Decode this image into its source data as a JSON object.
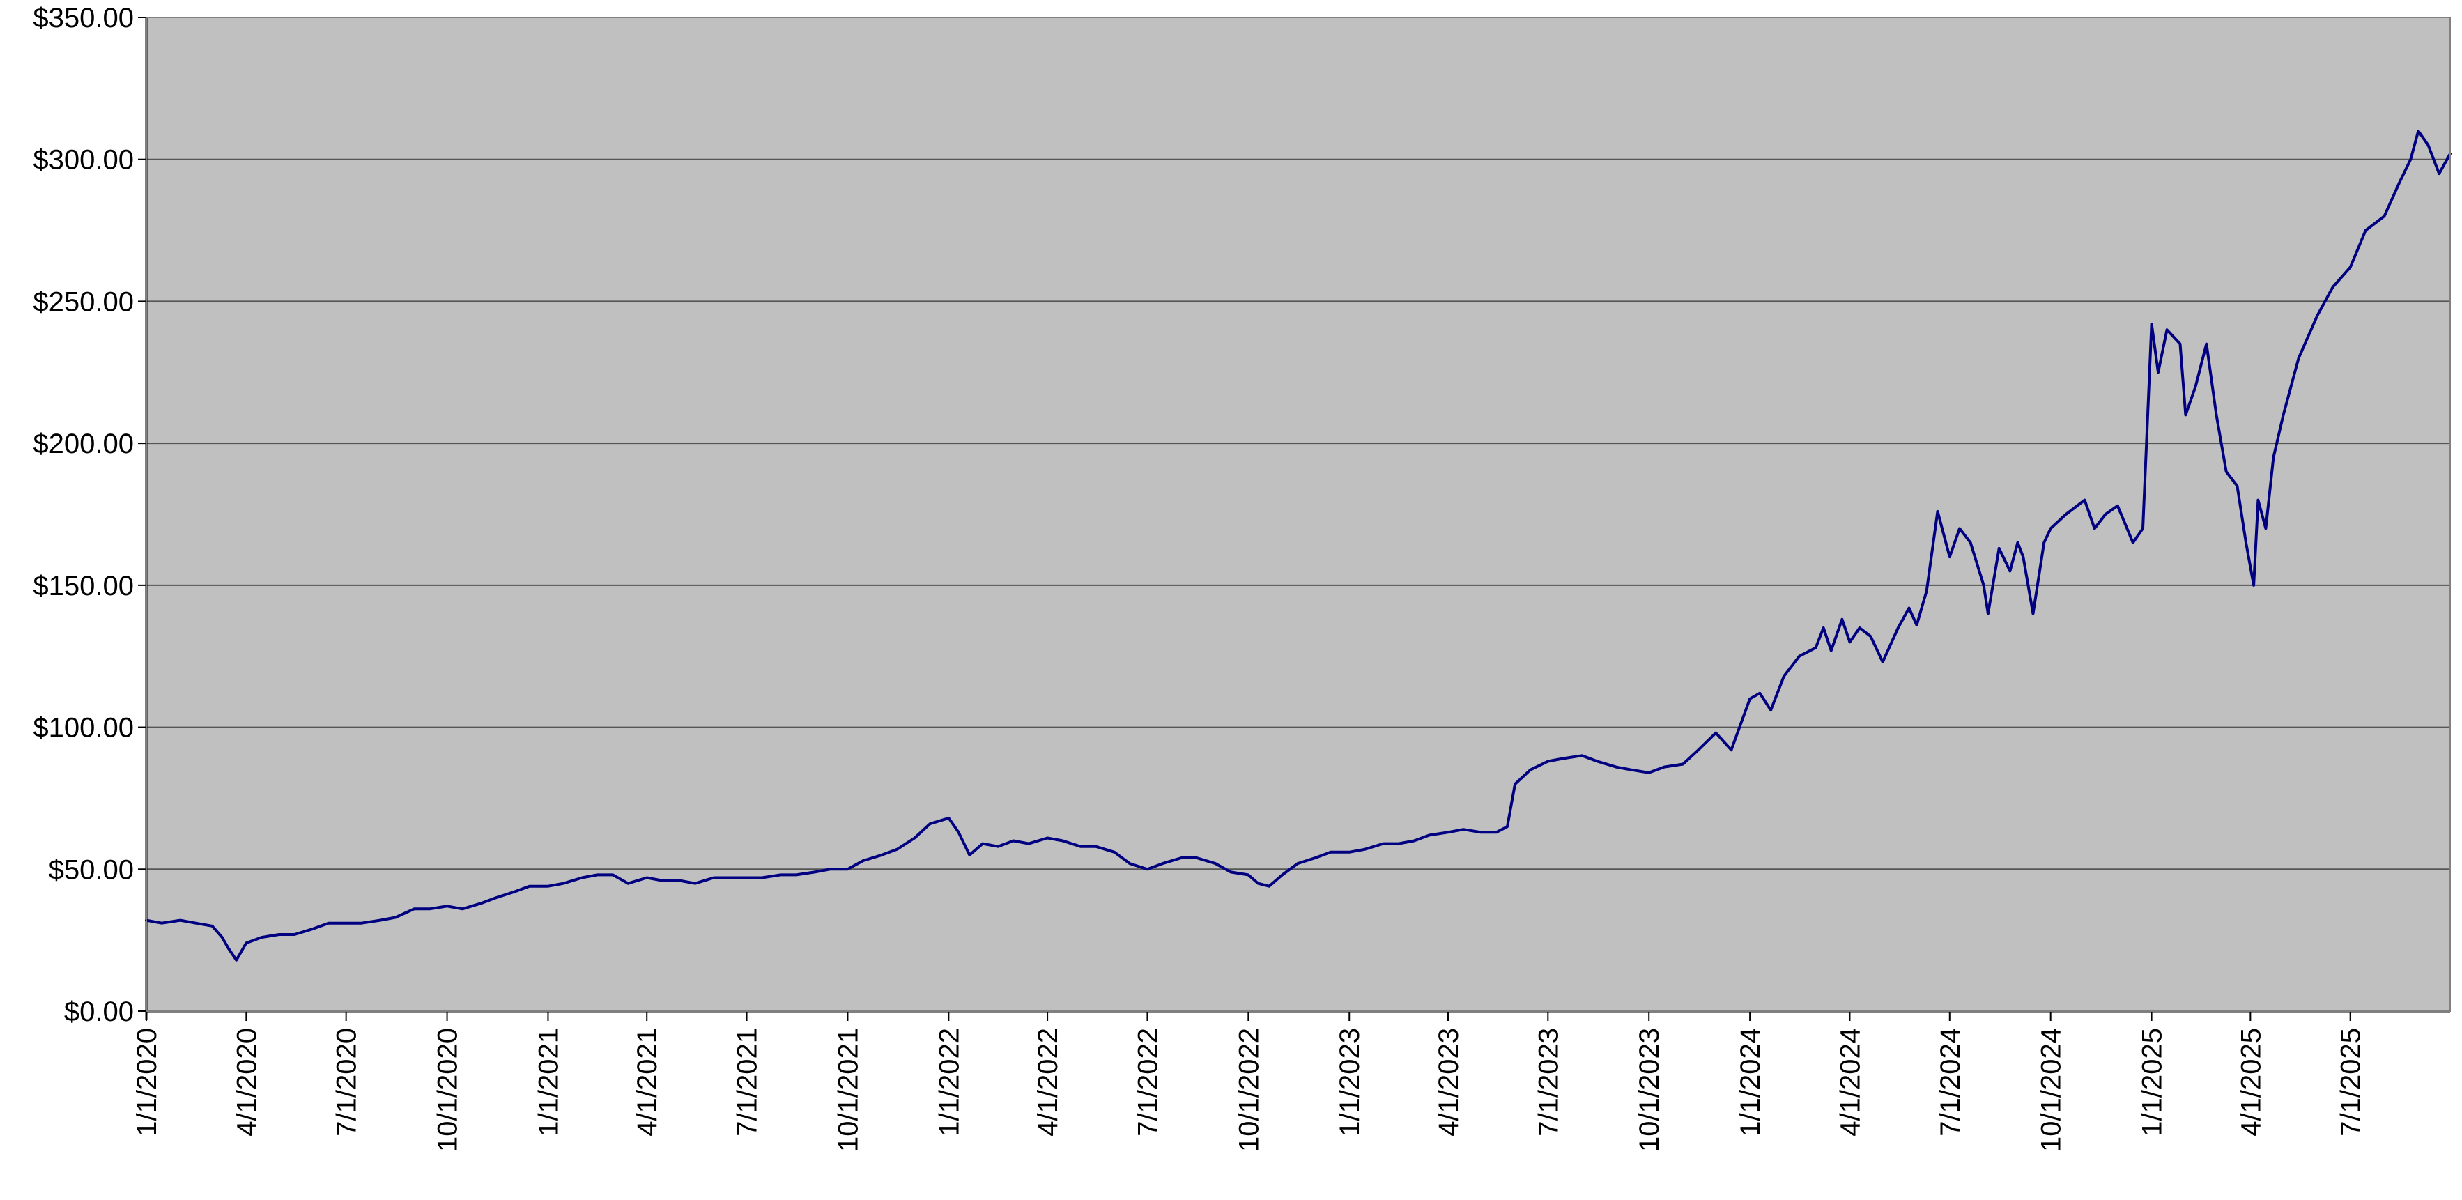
{
  "chart_data": {
    "type": "line",
    "title": "",
    "xlabel": "",
    "ylabel": "",
    "grid": true,
    "legend": "none",
    "colors": {
      "line": "#000080",
      "plot_background": "#c0c0c0",
      "grid": "#555555",
      "axis": "#000000"
    },
    "ylim": [
      0,
      350
    ],
    "y_ticks": [
      {
        "value": 0,
        "label": "$0.00"
      },
      {
        "value": 50,
        "label": "$50.00"
      },
      {
        "value": 100,
        "label": "$100.00"
      },
      {
        "value": 150,
        "label": "$150.00"
      },
      {
        "value": 200,
        "label": "$200.00"
      },
      {
        "value": 250,
        "label": "$250.00"
      },
      {
        "value": 300,
        "label": "$300.00"
      },
      {
        "value": 350,
        "label": "$350.00"
      }
    ],
    "xlim": [
      "2020-01-01",
      "2025-09-30"
    ],
    "x_ticks": [
      {
        "date": "2020-01-01",
        "label": "1/1/2020"
      },
      {
        "date": "2020-04-01",
        "label": "4/1/2020"
      },
      {
        "date": "2020-07-01",
        "label": "7/1/2020"
      },
      {
        "date": "2020-10-01",
        "label": "10/1/2020"
      },
      {
        "date": "2021-01-01",
        "label": "1/1/2021"
      },
      {
        "date": "2021-04-01",
        "label": "4/1/2021"
      },
      {
        "date": "2021-07-01",
        "label": "7/1/2021"
      },
      {
        "date": "2021-10-01",
        "label": "10/1/2021"
      },
      {
        "date": "2022-01-01",
        "label": "1/1/2022"
      },
      {
        "date": "2022-04-01",
        "label": "4/1/2022"
      },
      {
        "date": "2022-07-01",
        "label": "7/1/2022"
      },
      {
        "date": "2022-10-01",
        "label": "10/1/2022"
      },
      {
        "date": "2023-01-01",
        "label": "1/1/2023"
      },
      {
        "date": "2023-04-01",
        "label": "4/1/2023"
      },
      {
        "date": "2023-07-01",
        "label": "7/1/2023"
      },
      {
        "date": "2023-10-01",
        "label": "10/1/2023"
      },
      {
        "date": "2024-01-01",
        "label": "1/1/2024"
      },
      {
        "date": "2024-04-01",
        "label": "4/1/2024"
      },
      {
        "date": "2024-07-01",
        "label": "7/1/2024"
      },
      {
        "date": "2024-10-01",
        "label": "10/1/2024"
      },
      {
        "date": "2025-01-01",
        "label": "1/1/2025"
      },
      {
        "date": "2025-04-01",
        "label": "4/1/2025"
      },
      {
        "date": "2025-07-01",
        "label": "7/1/2025"
      }
    ],
    "series": [
      {
        "x": [
          "2020-01-01",
          "2020-01-15",
          "2020-02-01",
          "2020-02-15",
          "2020-03-01",
          "2020-03-10",
          "2020-03-16",
          "2020-03-23",
          "2020-04-01",
          "2020-04-15",
          "2020-05-01",
          "2020-05-15",
          "2020-06-01",
          "2020-06-15",
          "2020-07-01",
          "2020-07-15",
          "2020-08-01",
          "2020-08-15",
          "2020-09-01",
          "2020-09-15",
          "2020-10-01",
          "2020-10-15",
          "2020-11-01",
          "2020-11-15",
          "2020-12-01",
          "2020-12-15",
          "2021-01-01",
          "2021-01-15",
          "2021-02-01",
          "2021-02-15",
          "2021-03-01",
          "2021-03-15",
          "2021-04-01",
          "2021-04-15",
          "2021-05-01",
          "2021-05-15",
          "2021-06-01",
          "2021-06-15",
          "2021-07-01",
          "2021-07-15",
          "2021-08-01",
          "2021-08-15",
          "2021-09-01",
          "2021-09-15",
          "2021-10-01",
          "2021-10-15",
          "2021-11-01",
          "2021-11-15",
          "2021-12-01",
          "2021-12-15",
          "2022-01-01",
          "2022-01-10",
          "2022-01-20",
          "2022-02-01",
          "2022-02-15",
          "2022-03-01",
          "2022-03-15",
          "2022-04-01",
          "2022-04-15",
          "2022-05-01",
          "2022-05-15",
          "2022-06-01",
          "2022-06-15",
          "2022-07-01",
          "2022-07-15",
          "2022-08-01",
          "2022-08-15",
          "2022-09-01",
          "2022-09-15",
          "2022-10-01",
          "2022-10-10",
          "2022-10-20",
          "2022-11-01",
          "2022-11-15",
          "2022-12-01",
          "2022-12-15",
          "2023-01-01",
          "2023-01-15",
          "2023-02-01",
          "2023-02-15",
          "2023-03-01",
          "2023-03-15",
          "2023-04-01",
          "2023-04-15",
          "2023-05-01",
          "2023-05-15",
          "2023-05-25",
          "2023-06-01",
          "2023-06-15",
          "2023-07-01",
          "2023-07-15",
          "2023-08-01",
          "2023-08-15",
          "2023-09-01",
          "2023-09-15",
          "2023-10-01",
          "2023-10-15",
          "2023-11-01",
          "2023-11-15",
          "2023-12-01",
          "2023-12-15",
          "2024-01-01",
          "2024-01-10",
          "2024-01-20",
          "2024-02-01",
          "2024-02-15",
          "2024-03-01",
          "2024-03-08",
          "2024-03-15",
          "2024-03-25",
          "2024-04-01",
          "2024-04-10",
          "2024-04-20",
          "2024-05-01",
          "2024-05-15",
          "2024-05-25",
          "2024-06-01",
          "2024-06-10",
          "2024-06-20",
          "2024-07-01",
          "2024-07-10",
          "2024-07-20",
          "2024-08-01",
          "2024-08-05",
          "2024-08-15",
          "2024-08-25",
          "2024-09-01",
          "2024-09-06",
          "2024-09-15",
          "2024-09-25",
          "2024-10-01",
          "2024-10-15",
          "2024-11-01",
          "2024-11-10",
          "2024-11-20",
          "2024-12-01",
          "2024-12-15",
          "2024-12-24",
          "2025-01-01",
          "2025-01-07",
          "2025-01-15",
          "2025-01-27",
          "2025-02-01",
          "2025-02-10",
          "2025-02-20",
          "2025-03-01",
          "2025-03-10",
          "2025-03-20",
          "2025-03-28",
          "2025-04-04",
          "2025-04-08",
          "2025-04-15",
          "2025-04-22",
          "2025-05-01",
          "2025-05-15",
          "2025-06-01",
          "2025-06-15",
          "2025-07-01",
          "2025-07-15",
          "2025-08-01",
          "2025-08-15",
          "2025-08-25",
          "2025-09-01",
          "2025-09-10",
          "2025-09-20",
          "2025-09-30"
        ],
        "values": [
          32,
          31,
          32,
          31,
          30,
          26,
          22,
          18,
          24,
          26,
          27,
          27,
          29,
          31,
          31,
          31,
          32,
          33,
          36,
          36,
          37,
          36,
          38,
          40,
          42,
          44,
          44,
          45,
          47,
          48,
          48,
          45,
          47,
          46,
          46,
          45,
          47,
          47,
          47,
          47,
          48,
          48,
          49,
          50,
          50,
          53,
          55,
          57,
          61,
          66,
          68,
          63,
          55,
          59,
          58,
          60,
          59,
          61,
          60,
          58,
          58,
          56,
          52,
          50,
          52,
          54,
          54,
          52,
          49,
          48,
          45,
          44,
          48,
          52,
          54,
          56,
          56,
          57,
          59,
          59,
          60,
          62,
          63,
          64,
          63,
          63,
          65,
          80,
          85,
          88,
          89,
          90,
          88,
          86,
          85,
          84,
          86,
          87,
          92,
          98,
          92,
          110,
          112,
          106,
          118,
          125,
          128,
          135,
          127,
          138,
          130,
          135,
          132,
          123,
          135,
          142,
          136,
          148,
          176,
          160,
          170,
          165,
          150,
          140,
          163,
          155,
          165,
          160,
          140,
          165,
          170,
          175,
          180,
          170,
          175,
          178,
          165,
          170,
          242,
          225,
          240,
          235,
          210,
          220,
          235,
          210,
          190,
          185,
          165,
          150,
          180,
          170,
          195,
          210,
          230,
          245,
          255,
          262,
          275,
          280,
          292,
          300,
          310,
          305,
          295,
          302
        ]
      }
    ]
  }
}
